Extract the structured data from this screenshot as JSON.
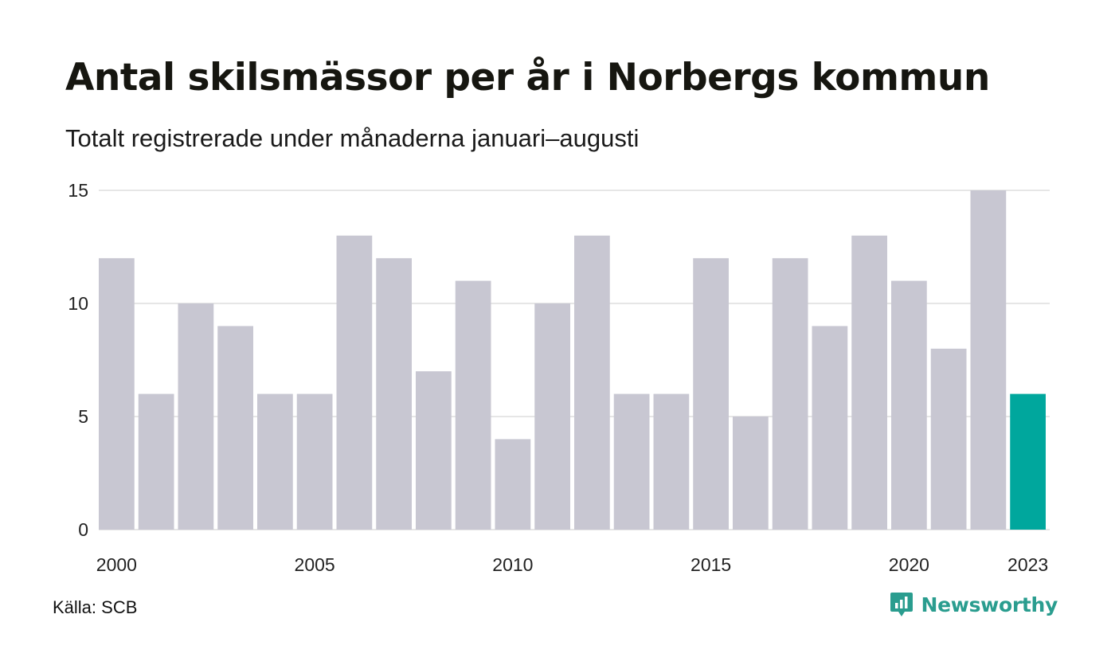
{
  "header": {
    "title": "Antal skilsmässor per år i Norbergs kommun",
    "subtitle": "Totalt registrerade under månaderna januari–augusti"
  },
  "footer": {
    "source": "Källa: SCB",
    "brand": "Newsworthy",
    "brand_icon": "newsworthy-logo-icon"
  },
  "chart_data": {
    "type": "bar",
    "categories": [
      "2000",
      "2001",
      "2002",
      "2003",
      "2004",
      "2005",
      "2006",
      "2007",
      "2008",
      "2009",
      "2010",
      "2011",
      "2012",
      "2013",
      "2014",
      "2015",
      "2016",
      "2017",
      "2018",
      "2019",
      "2020",
      "2021",
      "2022",
      "2023"
    ],
    "values": [
      12,
      6,
      10,
      9,
      6,
      6,
      13,
      12,
      7,
      11,
      4,
      10,
      13,
      6,
      6,
      12,
      5,
      12,
      9,
      13,
      11,
      8,
      15,
      6
    ],
    "x_tick_labels": [
      "2000",
      "2005",
      "2010",
      "2015",
      "2020",
      "2023"
    ],
    "y_ticks": [
      0,
      5,
      10,
      15
    ],
    "ylim": [
      0,
      15
    ],
    "grid": true,
    "colors": {
      "default": "#c8c7d2",
      "highlight": "#00a79d",
      "grid": "#e6e6e6"
    },
    "highlight_category": "2023"
  }
}
